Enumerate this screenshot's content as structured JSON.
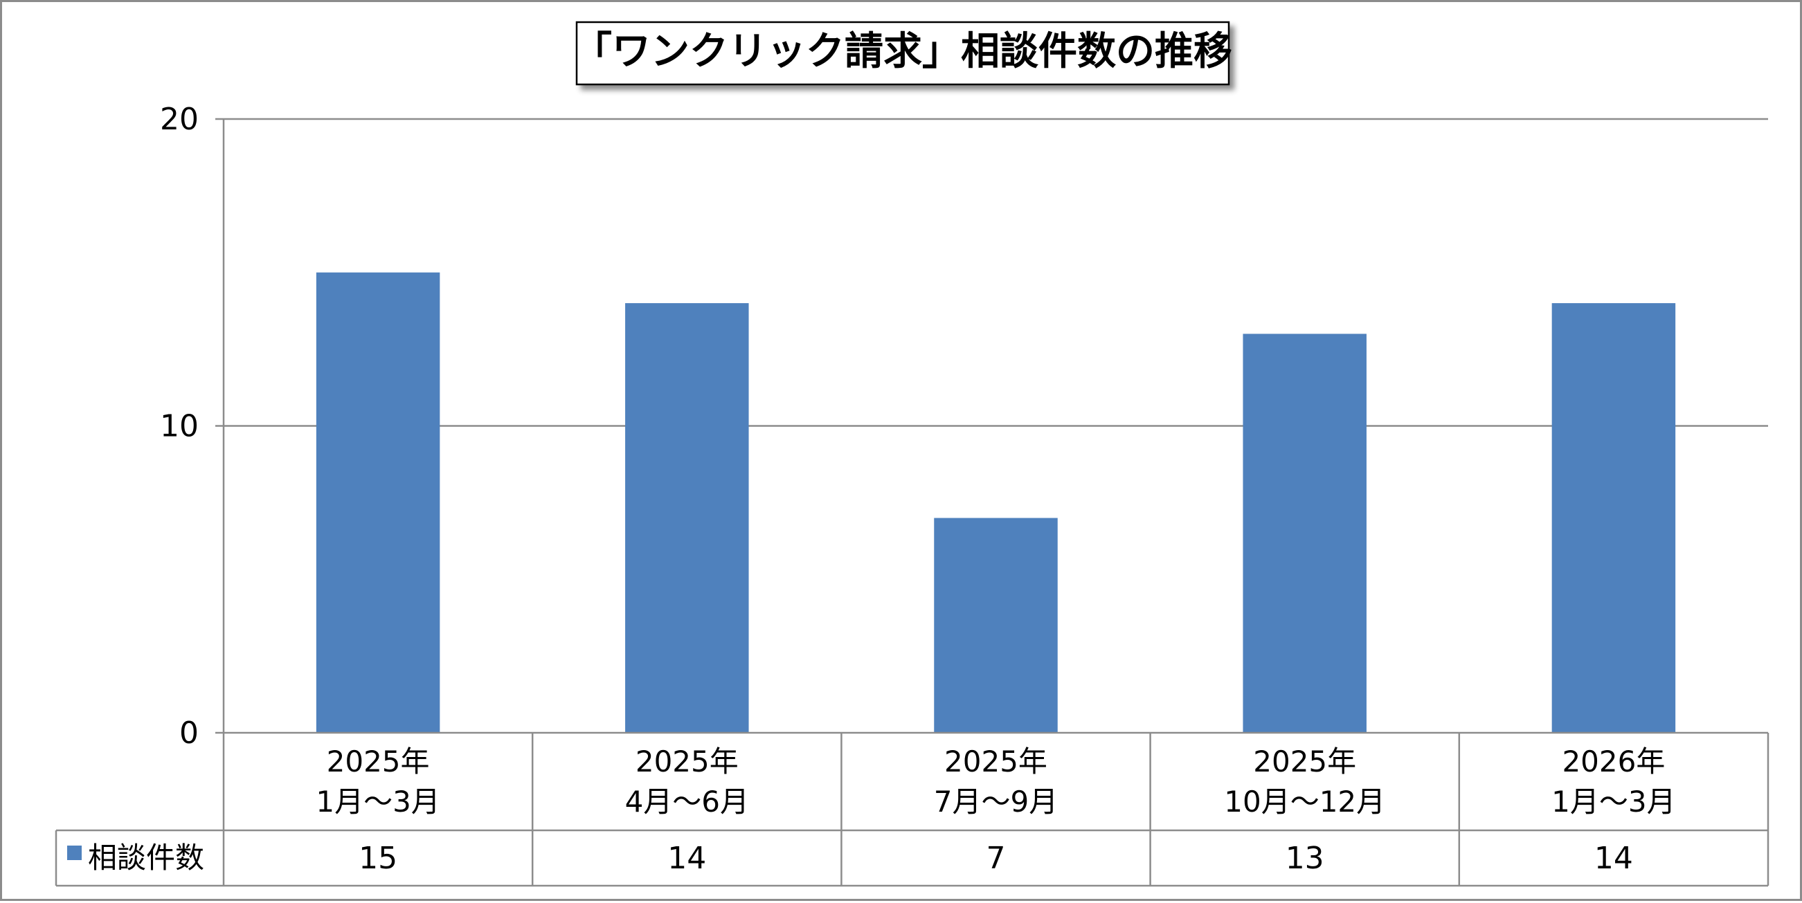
{
  "chart_data": {
    "type": "bar",
    "title": "「ワンクリック請求」相談件数の推移",
    "categories": [
      [
        "2025年",
        "1月～3月"
      ],
      [
        "2025年",
        "4月～6月"
      ],
      [
        "2025年",
        "7月～9月"
      ],
      [
        "2025年",
        "10月～12月"
      ],
      [
        "2026年",
        "1月～3月"
      ]
    ],
    "series": [
      {
        "name": "相談件数",
        "color": "#4F81BD",
        "values": [
          15,
          14,
          7,
          13,
          14
        ]
      }
    ],
    "ylim": [
      0,
      20
    ],
    "yticks": [
      0,
      10,
      20
    ],
    "grid": true,
    "legend": "data-table-left",
    "data_table": true
  }
}
